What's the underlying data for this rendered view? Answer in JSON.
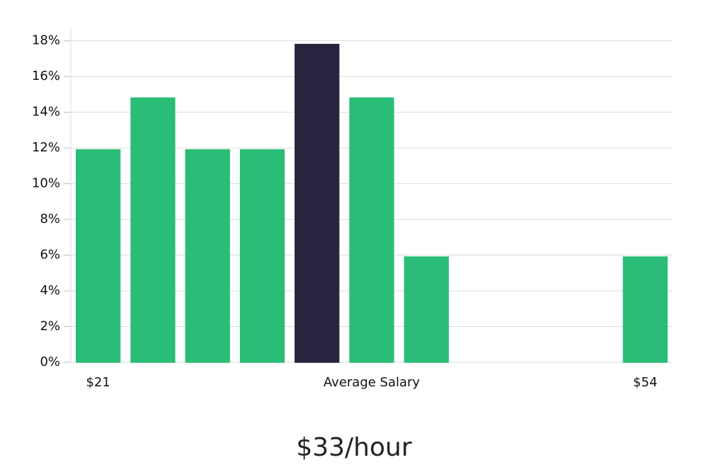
{
  "chart_data": {
    "type": "bar",
    "categories": [
      "$21",
      null,
      null,
      null,
      null,
      "Average Salary",
      null,
      null,
      null,
      null,
      "$54"
    ],
    "values": [
      11.9,
      14.8,
      11.9,
      11.9,
      17.8,
      14.8,
      5.9,
      0,
      0,
      0,
      5.9
    ],
    "colors": [
      "#2bbd77",
      "#2bbd77",
      "#2bbd77",
      "#2bbd77",
      "#28243f",
      "#2bbd77",
      "#2bbd77",
      "#2bbd77",
      "#2bbd77",
      "#2bbd77",
      "#2bbd77"
    ],
    "ylim": [
      0,
      18.7
    ],
    "yticks": [
      {
        "value": 0,
        "label": "0%"
      },
      {
        "value": 2,
        "label": "2%"
      },
      {
        "value": 4,
        "label": "4%"
      },
      {
        "value": 6,
        "label": "6%"
      },
      {
        "value": 8,
        "label": "8%"
      },
      {
        "value": 10,
        "label": "10%"
      },
      {
        "value": 12,
        "label": "12%"
      },
      {
        "value": 14,
        "label": "14%"
      },
      {
        "value": 16,
        "label": "16%"
      },
      {
        "value": 18,
        "label": "18%"
      }
    ],
    "grid": true,
    "annotation": "$33/hour"
  }
}
